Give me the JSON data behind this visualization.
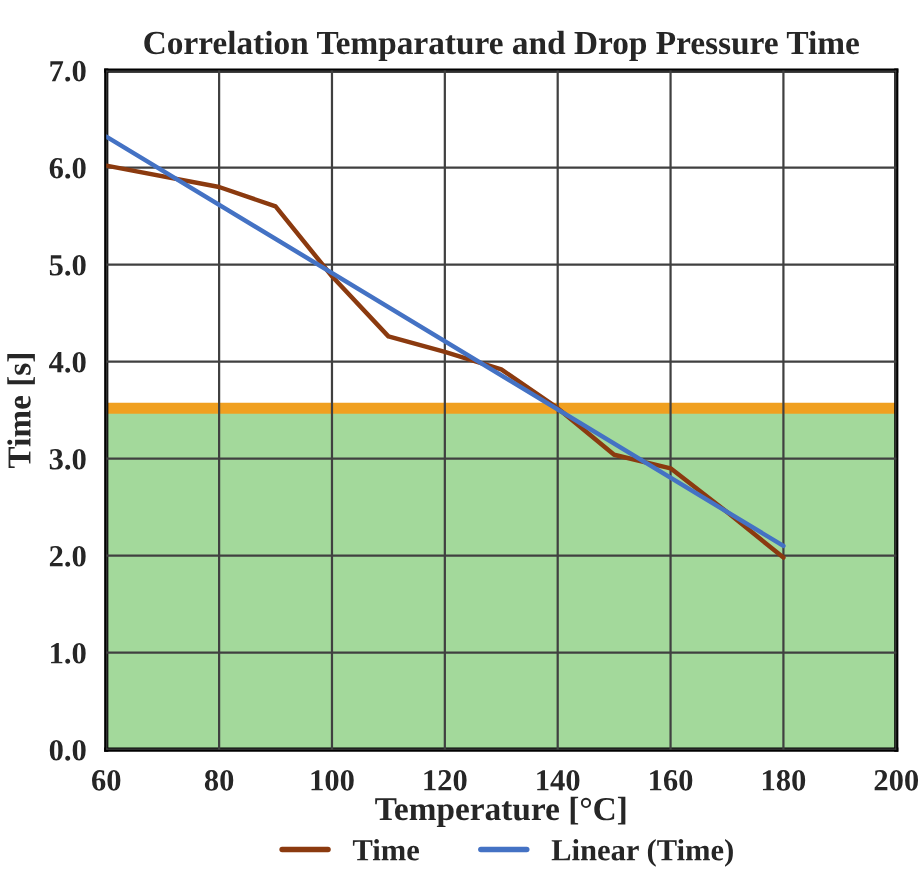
{
  "chart_data": {
    "type": "line",
    "title": "Correlation Temparature and Drop Pressure Time",
    "xlabel": "Temperature [°C]",
    "ylabel": "Time [s]",
    "x": [
      60,
      80,
      90,
      100,
      110,
      120,
      130,
      140,
      150,
      160,
      170,
      180
    ],
    "series": [
      {
        "name": "Time",
        "color": "#8b3a0f",
        "values": [
          6.02,
          5.8,
          5.6,
          4.88,
          4.26,
          4.1,
          3.92,
          3.52,
          3.04,
          2.9,
          2.45,
          1.98
        ]
      },
      {
        "name": "Linear (Time)",
        "color": "#4472c4",
        "x": [
          60,
          180
        ],
        "values": [
          6.32,
          2.1
        ]
      }
    ],
    "ref_lines": [
      {
        "axis": "y",
        "value": 3.52,
        "color": "#f0a020"
      }
    ],
    "bands": [
      {
        "axis": "y",
        "from": 0,
        "to": 3.52,
        "color": "#a3d99b"
      }
    ],
    "xlim": [
      60,
      200
    ],
    "xticks": [
      60,
      80,
      100,
      120,
      140,
      160,
      180,
      200
    ],
    "ylim": [
      0,
      7
    ],
    "yticks": [
      {
        "value": 0,
        "label": "0.0"
      },
      {
        "value": 1,
        "label": "1.0"
      },
      {
        "value": 2,
        "label": "2.0"
      },
      {
        "value": 3,
        "label": "3.0"
      },
      {
        "value": 4,
        "label": "4.0"
      },
      {
        "value": 5,
        "label": "5.0"
      },
      {
        "value": 6,
        "label": "6.0"
      },
      {
        "value": 7,
        "label": "7.0"
      }
    ],
    "grid": true,
    "legend": "bottom",
    "marker": "none",
    "line_style": "solid"
  }
}
